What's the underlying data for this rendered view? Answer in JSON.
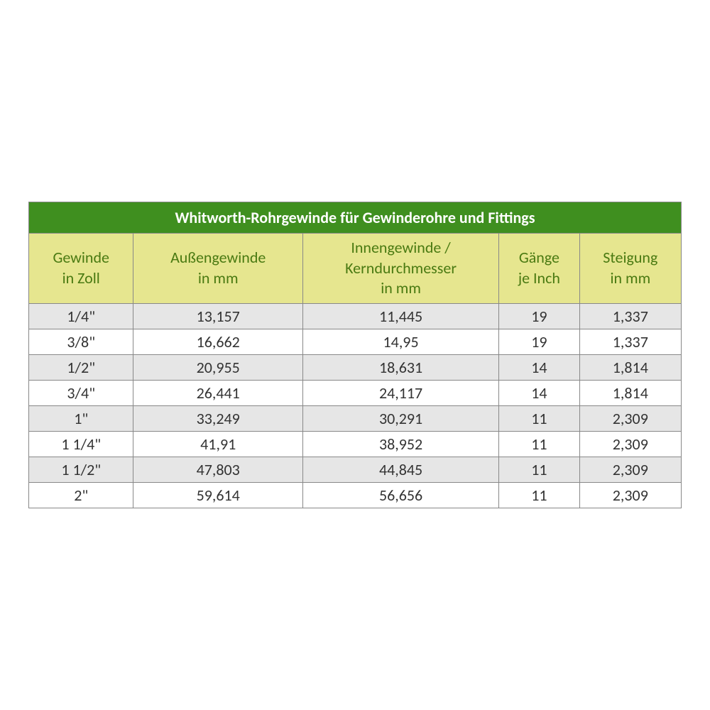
{
  "table": {
    "title": "Whitworth-Rohrgewinde für Gewinderohre und Fittings",
    "title_bg": "#3f8f1f",
    "title_fg": "#ffffff",
    "header_bg": "#e6e68f",
    "header_fg": "#4a7a12",
    "row_bg_even": "#e6e6e6",
    "row_bg_odd": "#ffffff",
    "cell_fg": "#333333",
    "border_color": "#888888",
    "columns": [
      {
        "line1": "Gewinde",
        "line2": "in Zoll",
        "line3": ""
      },
      {
        "line1": "Außengewinde",
        "line2": "in mm",
        "line3": ""
      },
      {
        "line1": "Innengewinde /",
        "line2": "Kerndurchmesser",
        "line3": "in mm"
      },
      {
        "line1": "Gänge",
        "line2": "je Inch",
        "line3": ""
      },
      {
        "line1": "Steigung",
        "line2": "in mm",
        "line3": ""
      }
    ],
    "rows": [
      [
        "1/4\"",
        "13,157",
        "11,445",
        "19",
        "1,337"
      ],
      [
        "3/8\"",
        "16,662",
        "14,95",
        "19",
        "1,337"
      ],
      [
        "1/2\"",
        "20,955",
        "18,631",
        "14",
        "1,814"
      ],
      [
        "3/4\"",
        "26,441",
        "24,117",
        "14",
        "1,814"
      ],
      [
        "1\"",
        "33,249",
        "30,291",
        "11",
        "2,309"
      ],
      [
        "1 1/4\"",
        "41,91",
        "38,952",
        "11",
        "2,309"
      ],
      [
        "1 1/2\"",
        "47,803",
        "44,845",
        "11",
        "2,309"
      ],
      [
        "2\"",
        "59,614",
        "56,656",
        "11",
        "2,309"
      ]
    ]
  }
}
